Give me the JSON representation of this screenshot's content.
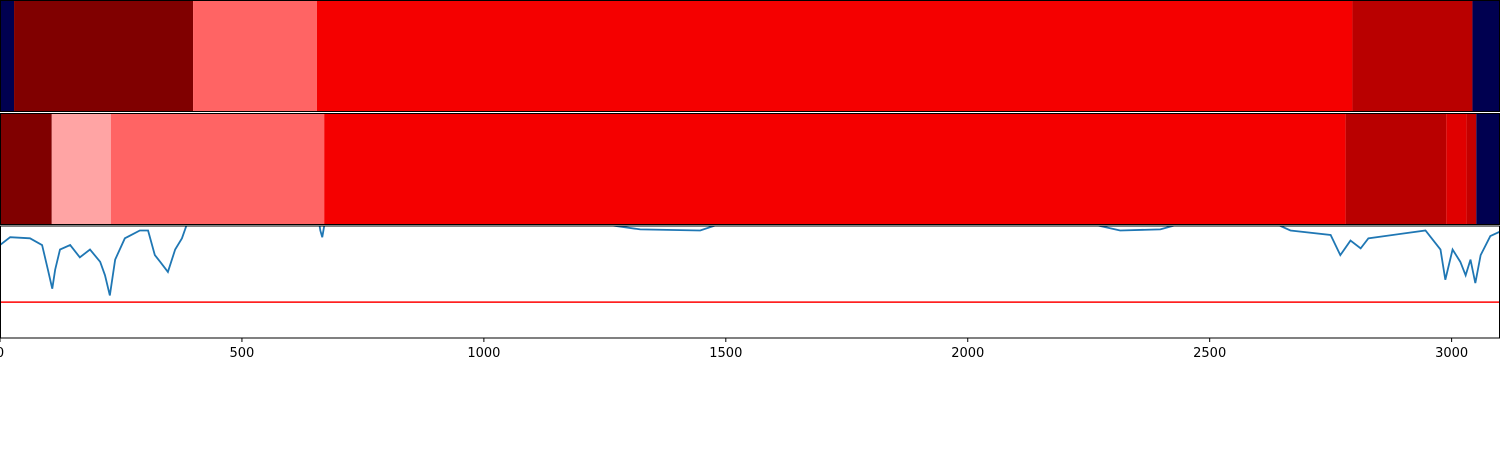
{
  "chart_data": [
    {
      "type": "segments",
      "xlim": [
        0,
        3100
      ],
      "edges": [
        0,
        29,
        399,
        655,
        2795,
        3043,
        3100
      ],
      "colors": [
        "#000050",
        "#800000",
        "#ff6464",
        "#f50000",
        "#b90000",
        "#000050"
      ]
    },
    {
      "type": "segments",
      "xlim": [
        0,
        3100
      ],
      "edges": [
        0,
        107,
        229,
        670,
        2781,
        2989,
        3031,
        3051,
        3100
      ],
      "colors": [
        "#800000",
        "#ffa4a4",
        "#ff6464",
        "#f50000",
        "#b90000",
        "#e00000",
        "#c40000",
        "#000050"
      ]
    },
    {
      "type": "line",
      "xlim": [
        0,
        3100
      ],
      "ylim": [
        0,
        1
      ],
      "xticks": [
        0,
        500,
        1000,
        1500,
        2000,
        2500,
        3000
      ],
      "color": "#1f77b4",
      "hline": 0.32,
      "hline_color": "#ff0000",
      "x": [
        0,
        21,
        62,
        87,
        99,
        108,
        114,
        124,
        145,
        165,
        186,
        207,
        217,
        227,
        238,
        258,
        289,
        306,
        320,
        331,
        347,
        362,
        376,
        385,
        413,
        657,
        662,
        666,
        672,
        1240,
        1323,
        1447,
        1489,
        2253,
        2315,
        2398,
        2440,
        2636,
        2667,
        2750,
        2770,
        2791,
        2812,
        2828,
        2946,
        2977,
        2987,
        3002,
        3018,
        3029,
        3039,
        3049,
        3060,
        3080,
        3100
      ],
      "values": [
        0.83,
        0.9,
        0.89,
        0.83,
        0.61,
        0.44,
        0.61,
        0.79,
        0.83,
        0.72,
        0.79,
        0.68,
        0.56,
        0.38,
        0.7,
        0.89,
        0.96,
        0.96,
        0.74,
        0.68,
        0.59,
        0.79,
        0.89,
        1.0,
        1.1,
        1.1,
        0.96,
        0.9,
        1.05,
        1.02,
        0.97,
        0.96,
        1.02,
        1.02,
        0.96,
        0.97,
        1.02,
        1.02,
        0.96,
        0.92,
        0.74,
        0.87,
        0.8,
        0.89,
        0.96,
        0.79,
        0.52,
        0.79,
        0.68,
        0.56,
        0.7,
        0.49,
        0.74,
        0.91,
        0.95
      ]
    }
  ]
}
